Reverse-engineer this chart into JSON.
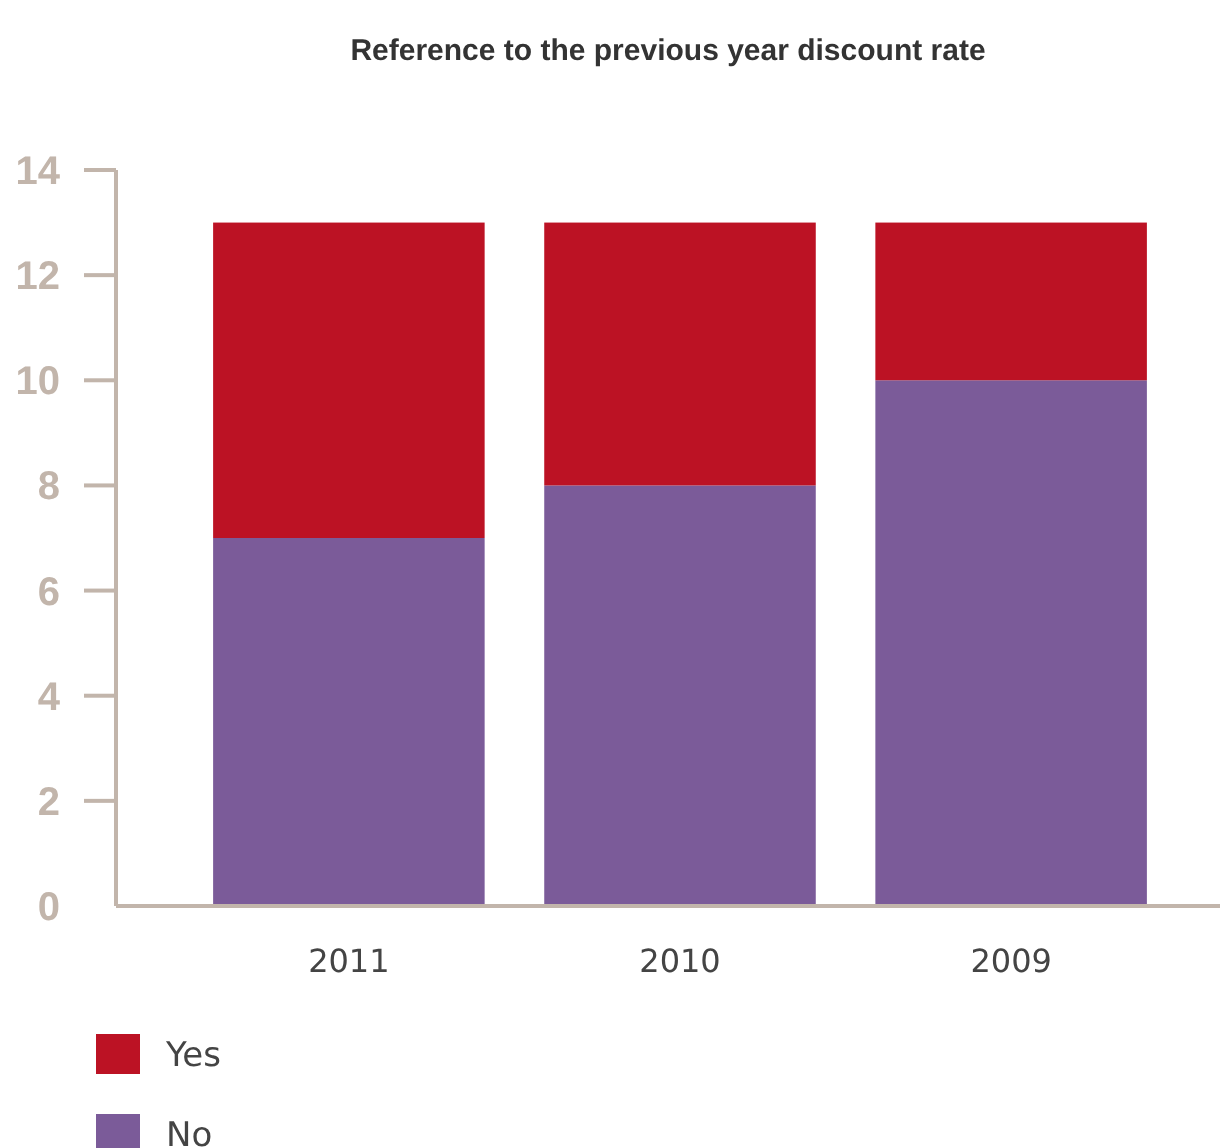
{
  "chart_data": {
    "type": "bar",
    "title": "Reference to the previous year discount rate",
    "categories": [
      "2011",
      "2010",
      "2009"
    ],
    "stacked": true,
    "series": [
      {
        "name": "No",
        "color": "#7b5b99",
        "values": [
          7,
          8,
          10
        ]
      },
      {
        "name": "Yes",
        "color": "#bc1224",
        "values": [
          6,
          5,
          3
        ]
      }
    ],
    "ylim": [
      0,
      14
    ],
    "yticks": [
      0,
      2,
      4,
      6,
      8,
      10,
      12,
      14
    ],
    "grid": false,
    "legend": "bottom left"
  }
}
